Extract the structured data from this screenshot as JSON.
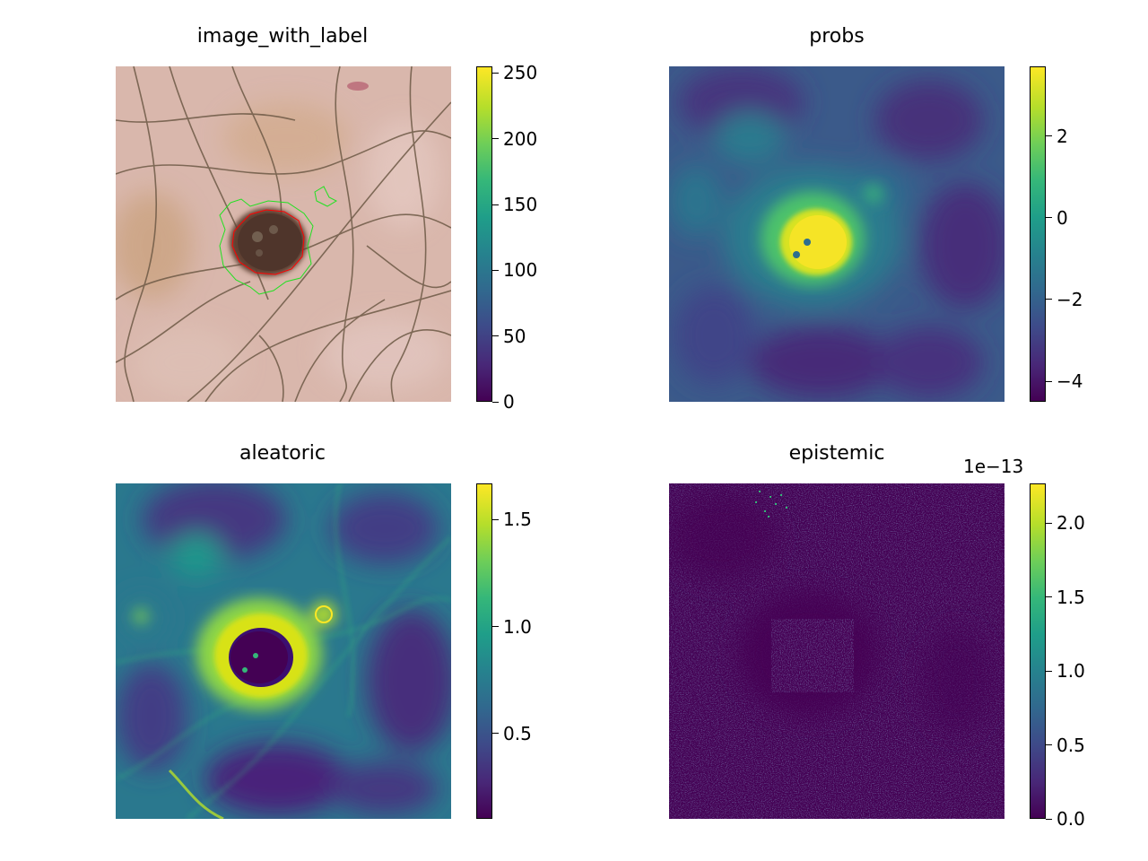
{
  "chart_data": [
    {
      "type": "heatmap",
      "title": "image_with_label",
      "colormap": "viridis",
      "content": "rgb dermoscopy image of skin with hairs and a dark lesion; label contour in red, prediction contour in green",
      "colorbar": {
        "range": [
          0,
          255
        ],
        "ticks": [
          0,
          50,
          100,
          150,
          200,
          250
        ],
        "tick_labels": [
          "0",
          "50",
          "100",
          "150",
          "200",
          "250"
        ]
      }
    },
    {
      "type": "heatmap",
      "title": "probs",
      "colormap": "viridis",
      "colorbar": {
        "range": [
          -4.5,
          3.7
        ],
        "ticks": [
          -4,
          -2,
          0,
          2
        ],
        "tick_labels": [
          "−4",
          "−2",
          "0",
          "2"
        ]
      }
    },
    {
      "type": "heatmap",
      "title": "aleatoric",
      "colormap": "viridis",
      "colorbar": {
        "range": [
          0.1,
          1.67
        ],
        "ticks": [
          0.5,
          1.0,
          1.5
        ],
        "tick_labels": [
          "0.5",
          "1.0",
          "1.5"
        ]
      }
    },
    {
      "type": "heatmap",
      "title": "epistemic",
      "colormap": "viridis",
      "colorbar": {
        "range": [
          0,
          2.27
        ],
        "ticks": [
          0.0,
          0.5,
          1.0,
          1.5,
          2.0
        ],
        "tick_labels": [
          "0.0",
          "0.5",
          "1.0",
          "1.5",
          "2.0"
        ],
        "offset_text": "1e−13"
      }
    }
  ],
  "colors": {
    "viridis": [
      "#440154",
      "#482878",
      "#3e4a89",
      "#31688e",
      "#26828e",
      "#1f9e89",
      "#35b779",
      "#6ece58",
      "#b5de2b",
      "#fde725"
    ],
    "label_contour": "#ff0000",
    "prediction_contour": "#00ff00"
  }
}
